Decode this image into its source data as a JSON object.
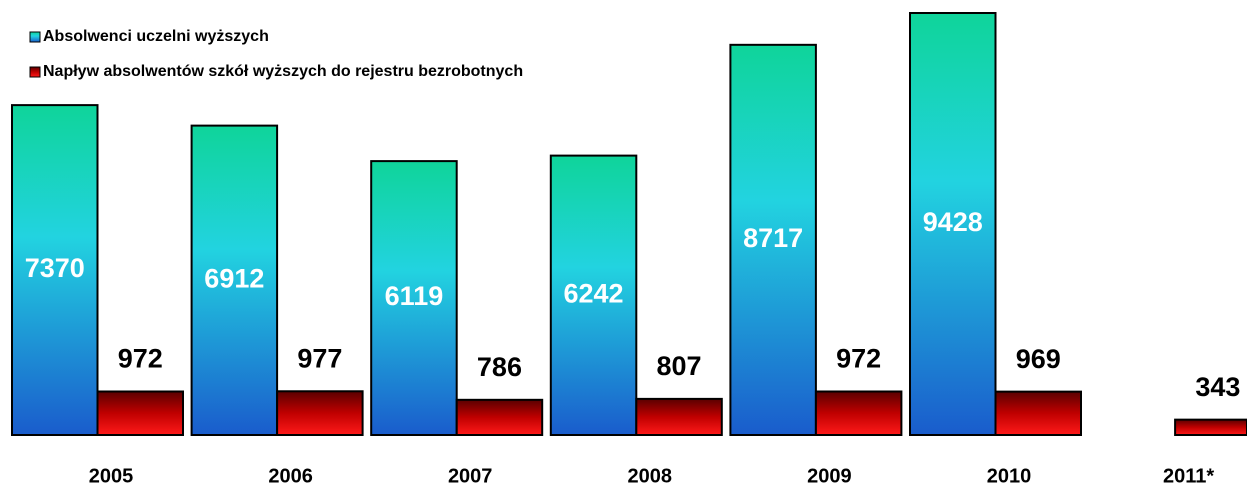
{
  "chart_data": {
    "type": "bar",
    "categories": [
      "2005",
      "2006",
      "2007",
      "2008",
      "2009",
      "2010",
      "2011*"
    ],
    "series": [
      {
        "name": "Absolwenci uczelni wyższych",
        "color": "#22d3e0",
        "values": [
          7370,
          6912,
          6119,
          6242,
          8717,
          9428,
          null
        ]
      },
      {
        "name": "Napływ absolwentów szkół wyższych do rejestru bezrobotnych",
        "color": "#c00000",
        "values": [
          972,
          977,
          786,
          807,
          972,
          969,
          343
        ]
      }
    ],
    "legend": "top-left"
  }
}
